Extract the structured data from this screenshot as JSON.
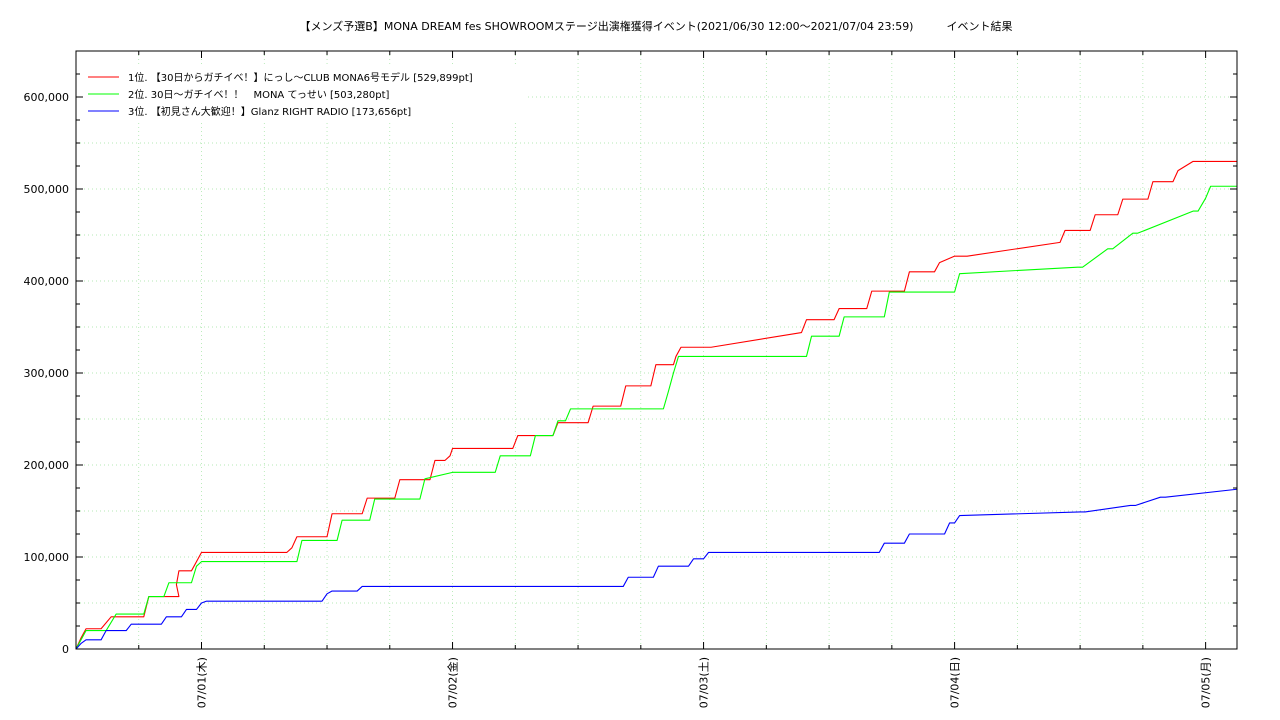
{
  "chart_data": {
    "type": "line",
    "title": "【メンズ予選B】MONA DREAM fes SHOWROOMステージ出演権獲得イベント(2021/06/30 12:00～2021/07/04 23:59)　　　イベント結果",
    "xlabel": "",
    "ylabel": "",
    "x_unit": "days since 2021/06/30 12:00",
    "xlim": [
      0,
      4.625
    ],
    "ylim": [
      0,
      650000
    ],
    "y_ticks": [
      0,
      100000,
      200000,
      300000,
      400000,
      500000,
      600000
    ],
    "y_tick_labels": [
      "0",
      "100,000",
      "200,000",
      "300,000",
      "400,000",
      "500,000",
      "600,000"
    ],
    "x_ticks": [
      0.5,
      1.5,
      2.5,
      3.5,
      4.5
    ],
    "x_tick_labels": [
      "07/01(木)",
      "07/02(金)",
      "07/03(土)",
      "07/04(日)",
      "07/05(月)"
    ],
    "grid": true,
    "legend_position": "top-left",
    "series": [
      {
        "name": "1位. 【30日からガチイベ！】にっし〜CLUB MONA6号モデル [529,899pt]",
        "color": "#ff0000",
        "x": [
          0,
          0.02,
          0.04,
          0.1,
          0.14,
          0.27,
          0.29,
          0.39,
          0.41,
          0.4,
          0.41,
          0.42,
          0.46,
          0.48,
          0.5,
          0.52,
          0.84,
          0.86,
          0.88,
          1.0,
          1.02,
          1.14,
          1.16,
          1.27,
          1.29,
          1.41,
          1.43,
          1.47,
          1.49,
          1.5,
          1.52,
          1.74,
          1.76,
          1.9,
          1.92,
          2.04,
          2.06,
          2.17,
          2.19,
          2.29,
          2.31,
          2.38,
          2.39,
          2.41,
          2.5,
          2.51,
          2.53,
          2.89,
          2.91,
          3.02,
          3.04,
          3.15,
          3.17,
          3.3,
          3.32,
          3.42,
          3.44,
          3.5,
          3.52,
          3.53,
          3.55,
          3.92,
          3.94,
          4.04,
          4.06,
          4.15,
          4.17,
          4.27,
          4.29,
          4.37,
          4.39,
          4.45,
          4.47,
          4.5,
          4.52,
          4.625
        ],
        "y": [
          0,
          12000,
          22000,
          22000,
          35000,
          35000,
          57000,
          57000,
          57000,
          70000,
          85000,
          85000,
          85000,
          95000,
          105000,
          105000,
          105000,
          110000,
          122000,
          122000,
          147000,
          147000,
          164000,
          164000,
          184000,
          184000,
          205000,
          205000,
          210000,
          218000,
          218000,
          218000,
          232000,
          232000,
          246000,
          246000,
          264000,
          264000,
          286000,
          286000,
          309000,
          309000,
          318000,
          328000,
          328000,
          328000,
          328000,
          344000,
          358000,
          358000,
          370000,
          370000,
          389000,
          389000,
          410000,
          410000,
          420000,
          427000,
          427000,
          427000,
          427000,
          442000,
          455000,
          455000,
          472000,
          472000,
          489000,
          489000,
          508000,
          508000,
          520000,
          530000,
          530000,
          530000,
          530000,
          530000
        ]
      },
      {
        "name": "2位. 30日〜ガチイベ！！　MONA てっせい [503,280pt]",
        "color": "#00ff00",
        "x": [
          0,
          0.02,
          0.04,
          0.12,
          0.16,
          0.27,
          0.29,
          0.35,
          0.37,
          0.46,
          0.48,
          0.5,
          0.52,
          0.88,
          0.9,
          1.04,
          1.06,
          1.17,
          1.19,
          1.37,
          1.39,
          1.5,
          1.52,
          1.67,
          1.69,
          1.81,
          1.83,
          1.9,
          1.92,
          1.95,
          1.97,
          2.34,
          2.36,
          2.38,
          2.4,
          2.5,
          2.52,
          2.91,
          2.93,
          3.04,
          3.06,
          3.15,
          3.17,
          3.22,
          3.24,
          3.5,
          3.52,
          3.99,
          4.01,
          4.11,
          4.13,
          4.21,
          4.23,
          4.45,
          4.47,
          4.5,
          4.52,
          4.625
        ],
        "y": [
          0,
          10000,
          20000,
          20000,
          38000,
          38000,
          57000,
          57000,
          72000,
          72000,
          90000,
          95000,
          95000,
          95000,
          118000,
          118000,
          140000,
          140000,
          163000,
          163000,
          185000,
          192000,
          192000,
          192000,
          210000,
          210000,
          232000,
          232000,
          248000,
          248000,
          261000,
          261000,
          280000,
          300000,
          318000,
          318000,
          318000,
          318000,
          340000,
          340000,
          361000,
          361000,
          361000,
          361000,
          388000,
          388000,
          408000,
          415000,
          415000,
          435000,
          435000,
          452000,
          452000,
          476000,
          476000,
          490000,
          503000,
          503000
        ]
      },
      {
        "name": "3位. 【初見さん大歓迎！】Glanz RIGHT RADIO [173,656pt]",
        "color": "#0000ff",
        "x": [
          0,
          0.02,
          0.04,
          0.1,
          0.12,
          0.2,
          0.22,
          0.34,
          0.36,
          0.42,
          0.44,
          0.48,
          0.5,
          0.52,
          0.98,
          1.0,
          1.02,
          1.12,
          1.14,
          1.5,
          1.52,
          2.18,
          2.2,
          2.3,
          2.32,
          2.44,
          2.46,
          2.5,
          2.52,
          3.0,
          3.02,
          3.2,
          3.22,
          3.3,
          3.32,
          3.46,
          3.48,
          3.5,
          3.52,
          4.0,
          4.02,
          4.2,
          4.22,
          4.32,
          4.34,
          4.625
        ],
        "y": [
          0,
          6000,
          10000,
          10000,
          20000,
          20000,
          27000,
          27000,
          35000,
          35000,
          43000,
          43000,
          50000,
          52000,
          52000,
          60000,
          63000,
          63000,
          68000,
          68000,
          68000,
          68000,
          78000,
          78000,
          90000,
          90000,
          98000,
          98000,
          105000,
          105000,
          105000,
          105000,
          115000,
          115000,
          125000,
          125000,
          137000,
          137000,
          145000,
          149000,
          149000,
          156000,
          156000,
          165000,
          165000,
          173656
        ]
      }
    ]
  }
}
